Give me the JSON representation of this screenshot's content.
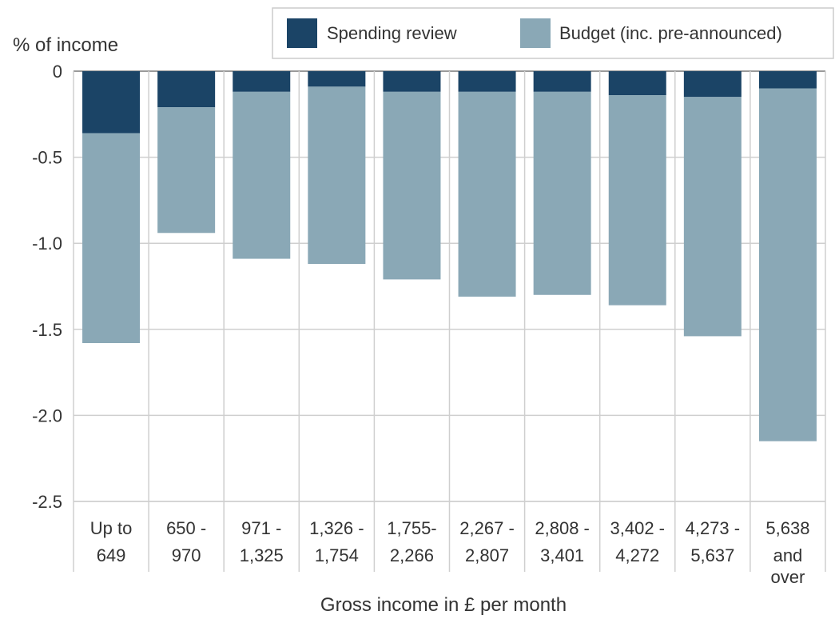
{
  "chart_data": {
    "type": "bar",
    "stacked": true,
    "title": "",
    "ylabel": "% of income",
    "xlabel": "Gross income in £ per month",
    "ylim": [
      -2.5,
      0
    ],
    "yticks": [
      "0",
      "-0.5",
      "-1.0",
      "-1.5",
      "-2.0",
      "-2.5"
    ],
    "grid": true,
    "legend_position": "top-right",
    "categories": [
      [
        "Up to",
        "649"
      ],
      [
        "650 -",
        "970"
      ],
      [
        "971 -",
        "1,325"
      ],
      [
        "1,326 -",
        "1,754"
      ],
      [
        "1,755-",
        "2,266"
      ],
      [
        "2,267 -",
        "2,807"
      ],
      [
        "2,808 -",
        "3,401"
      ],
      [
        "3,402 -",
        "4,272"
      ],
      [
        "4,273 -",
        "5,637"
      ],
      [
        "5,638",
        "and",
        "over"
      ]
    ],
    "series": [
      {
        "name": "Spending review",
        "color": "#1b4466",
        "values": [
          -0.36,
          -0.21,
          -0.12,
          -0.09,
          -0.12,
          -0.12,
          -0.12,
          -0.14,
          -0.15,
          -0.1
        ]
      },
      {
        "name": "Budget (inc. pre-announced)",
        "color": "#8aa8b6",
        "values": [
          -1.22,
          -0.73,
          -0.97,
          -1.03,
          -1.09,
          -1.19,
          -1.18,
          -1.22,
          -1.39,
          -2.05
        ]
      }
    ]
  }
}
